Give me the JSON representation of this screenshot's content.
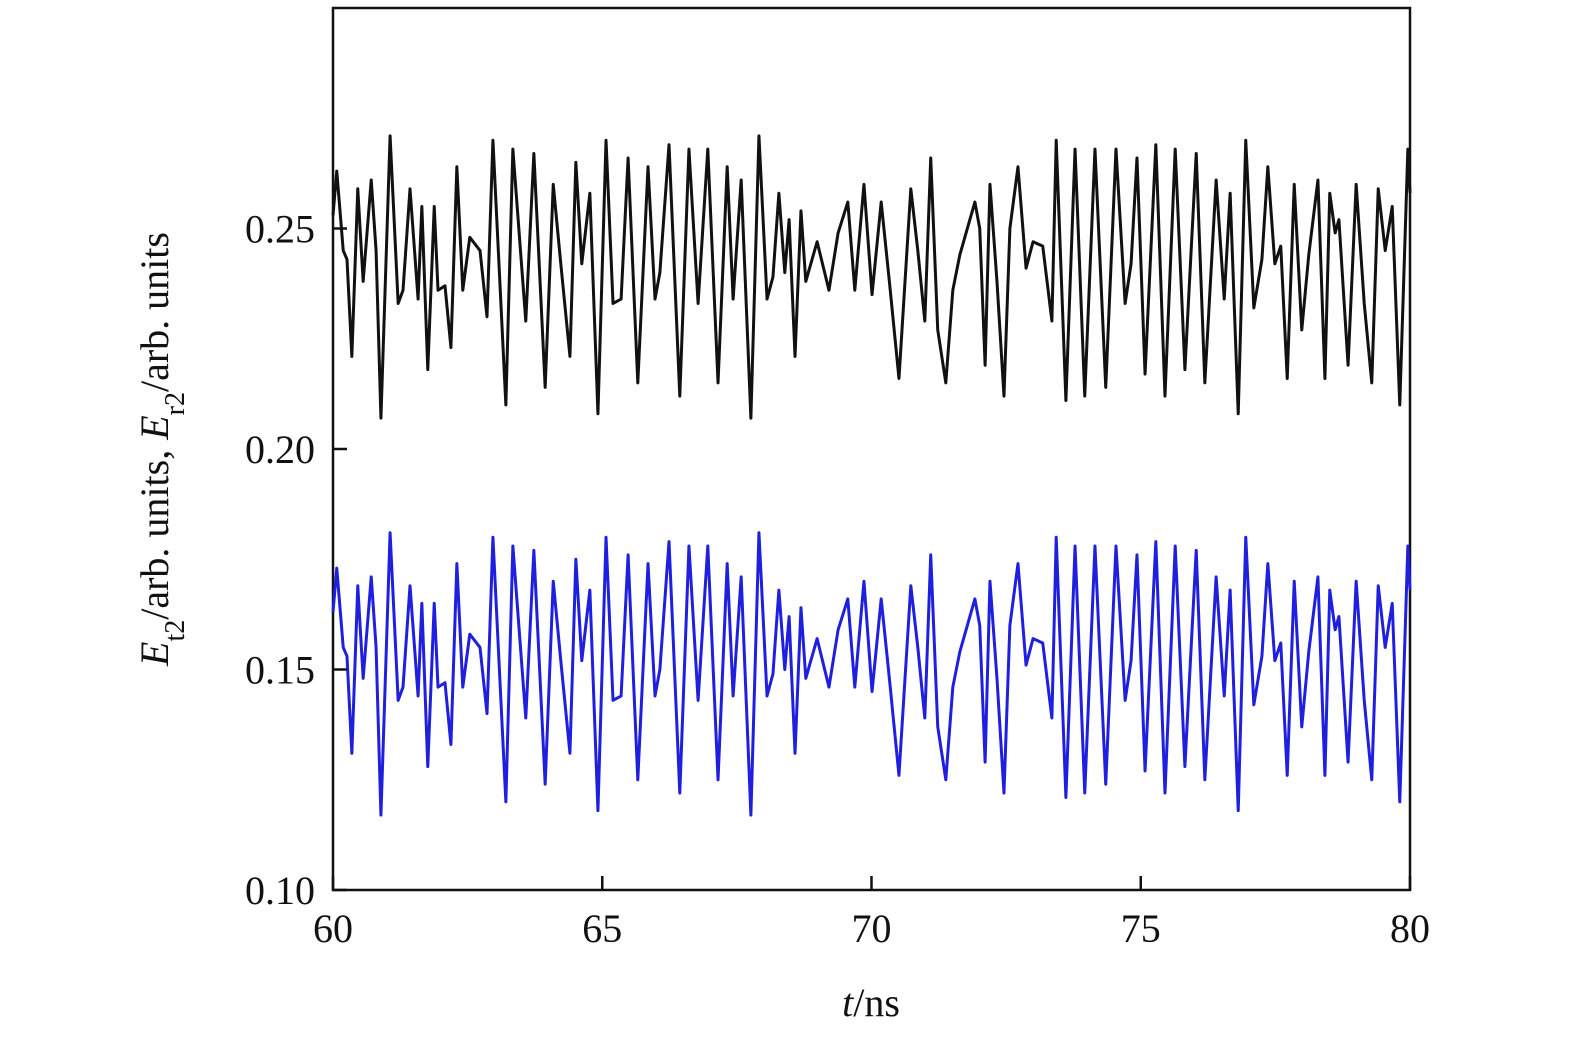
{
  "chart_data": {
    "type": "line",
    "xlabel": [
      "t",
      "/ns"
    ],
    "ylabel": [
      "E",
      "t2",
      "/arb. units, ",
      "E",
      "r2",
      "/arb. units"
    ],
    "xlim": [
      60,
      80
    ],
    "xticks": [
      60,
      65,
      70,
      75,
      80
    ],
    "ylim": [
      0.1,
      0.3
    ],
    "yticks": [
      {
        "value": 0.1,
        "label": "0.10"
      },
      0.15,
      {
        "value": 0.2,
        "label": "0.20"
      },
      0.25
    ],
    "x": [
      60.0,
      60.07,
      60.19,
      60.26,
      60.35,
      60.46,
      60.56,
      60.71,
      60.8,
      60.89,
      61.06,
      61.21,
      61.3,
      61.43,
      61.58,
      61.65,
      61.76,
      61.88,
      61.95,
      62.08,
      62.19,
      62.3,
      62.41,
      62.54,
      62.73,
      62.86,
      62.97,
      63.21,
      63.34,
      63.58,
      63.73,
      63.94,
      64.09,
      64.23,
      64.4,
      64.51,
      64.62,
      64.77,
      64.92,
      65.07,
      65.2,
      65.35,
      65.48,
      65.66,
      65.85,
      65.98,
      66.07,
      66.24,
      66.44,
      66.61,
      66.78,
      66.96,
      67.15,
      67.32,
      67.43,
      67.58,
      67.76,
      67.91,
      68.06,
      68.17,
      68.28,
      68.39,
      68.47,
      68.58,
      68.69,
      68.78,
      68.99,
      69.21,
      69.38,
      69.56,
      69.69,
      69.86,
      70.01,
      70.18,
      70.34,
      70.51,
      70.73,
      70.86,
      70.99,
      71.1,
      71.23,
      71.38,
      71.51,
      71.64,
      71.92,
      72.01,
      72.11,
      72.2,
      72.33,
      72.46,
      72.57,
      72.72,
      72.87,
      73.0,
      73.18,
      73.35,
      73.43,
      73.61,
      73.78,
      73.96,
      74.15,
      74.35,
      74.54,
      74.71,
      74.82,
      74.93,
      75.08,
      75.28,
      75.45,
      75.64,
      75.82,
      76.03,
      76.19,
      76.4,
      76.55,
      76.66,
      76.81,
      76.95,
      77.1,
      77.25,
      77.36,
      77.49,
      77.6,
      77.72,
      77.85,
      77.99,
      78.12,
      78.29,
      78.42,
      78.51,
      78.61,
      78.68,
      78.85,
      79.0,
      79.15,
      79.29,
      79.41,
      79.54,
      79.67,
      79.81,
      79.96,
      80.0
    ],
    "series": [
      {
        "color": "#111111",
        "values": [
          0.253,
          0.263,
          0.245,
          0.243,
          0.221,
          0.259,
          0.238,
          0.261,
          0.245,
          0.207,
          0.271,
          0.233,
          0.236,
          0.259,
          0.234,
          0.255,
          0.218,
          0.255,
          0.236,
          0.237,
          0.223,
          0.264,
          0.236,
          0.248,
          0.245,
          0.23,
          0.27,
          0.21,
          0.268,
          0.229,
          0.267,
          0.214,
          0.26,
          0.242,
          0.221,
          0.265,
          0.242,
          0.258,
          0.208,
          0.27,
          0.233,
          0.234,
          0.266,
          0.215,
          0.264,
          0.234,
          0.24,
          0.269,
          0.212,
          0.268,
          0.233,
          0.268,
          0.215,
          0.264,
          0.234,
          0.261,
          0.207,
          0.271,
          0.234,
          0.239,
          0.258,
          0.24,
          0.252,
          0.221,
          0.254,
          0.238,
          0.247,
          0.236,
          0.249,
          0.256,
          0.236,
          0.26,
          0.235,
          0.256,
          0.237,
          0.216,
          0.259,
          0.245,
          0.229,
          0.266,
          0.227,
          0.215,
          0.236,
          0.244,
          0.256,
          0.25,
          0.219,
          0.26,
          0.238,
          0.212,
          0.25,
          0.264,
          0.241,
          0.247,
          0.246,
          0.229,
          0.27,
          0.211,
          0.268,
          0.212,
          0.268,
          0.214,
          0.268,
          0.233,
          0.242,
          0.266,
          0.217,
          0.269,
          0.212,
          0.268,
          0.218,
          0.267,
          0.215,
          0.261,
          0.234,
          0.258,
          0.208,
          0.27,
          0.232,
          0.243,
          0.264,
          0.242,
          0.246,
          0.216,
          0.26,
          0.227,
          0.244,
          0.261,
          0.216,
          0.258,
          0.249,
          0.252,
          0.219,
          0.26,
          0.233,
          0.215,
          0.259,
          0.245,
          0.255,
          0.21,
          0.268,
          0.258
        ]
      },
      {
        "color": "#1f1fe0",
        "values": [
          0.163,
          0.173,
          0.155,
          0.153,
          0.131,
          0.169,
          0.148,
          0.171,
          0.155,
          0.117,
          0.181,
          0.143,
          0.146,
          0.169,
          0.144,
          0.165,
          0.128,
          0.165,
          0.146,
          0.147,
          0.133,
          0.174,
          0.146,
          0.158,
          0.155,
          0.14,
          0.18,
          0.12,
          0.178,
          0.139,
          0.177,
          0.124,
          0.17,
          0.152,
          0.131,
          0.175,
          0.152,
          0.168,
          0.118,
          0.18,
          0.143,
          0.144,
          0.176,
          0.125,
          0.174,
          0.144,
          0.15,
          0.179,
          0.122,
          0.178,
          0.143,
          0.178,
          0.125,
          0.174,
          0.144,
          0.171,
          0.117,
          0.181,
          0.144,
          0.149,
          0.168,
          0.15,
          0.162,
          0.131,
          0.164,
          0.148,
          0.157,
          0.146,
          0.159,
          0.166,
          0.146,
          0.17,
          0.145,
          0.166,
          0.147,
          0.126,
          0.169,
          0.155,
          0.139,
          0.176,
          0.137,
          0.125,
          0.146,
          0.154,
          0.166,
          0.16,
          0.129,
          0.17,
          0.148,
          0.122,
          0.16,
          0.174,
          0.151,
          0.157,
          0.156,
          0.139,
          0.18,
          0.121,
          0.178,
          0.122,
          0.178,
          0.124,
          0.178,
          0.143,
          0.152,
          0.176,
          0.127,
          0.179,
          0.122,
          0.178,
          0.128,
          0.177,
          0.125,
          0.171,
          0.144,
          0.168,
          0.118,
          0.18,
          0.142,
          0.153,
          0.174,
          0.152,
          0.156,
          0.126,
          0.17,
          0.137,
          0.154,
          0.171,
          0.126,
          0.168,
          0.159,
          0.162,
          0.129,
          0.17,
          0.143,
          0.125,
          0.169,
          0.155,
          0.165,
          0.12,
          0.178,
          0.168
        ]
      }
    ]
  }
}
